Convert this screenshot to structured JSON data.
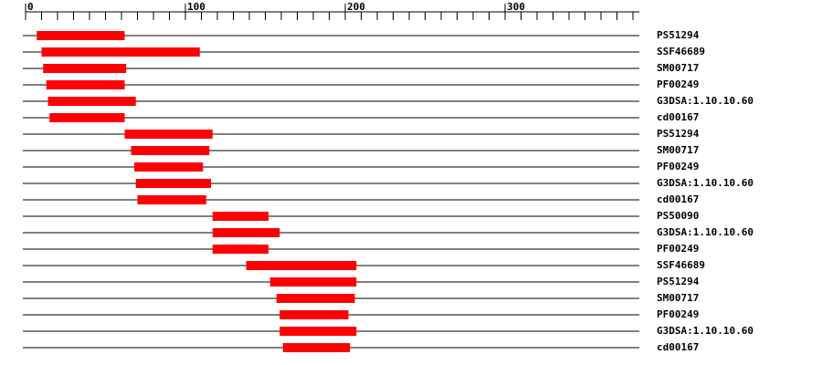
{
  "chart_data": {
    "type": "range",
    "categories": [
      "PS51294",
      "SSF46689",
      "SM00717",
      "PF00249",
      "G3DSA:1.10.10.60",
      "cd00167",
      "PS51294",
      "SM00717",
      "PF00249",
      "G3DSA:1.10.10.60",
      "cd00167",
      "PS50090",
      "G3DSA:1.10.10.60",
      "PF00249",
      "SSF46689",
      "PS51294",
      "SM00717",
      "PF00249",
      "G3DSA:1.10.10.60",
      "cd00167"
    ],
    "starts": [
      7,
      10,
      11,
      13,
      14,
      15,
      62,
      66,
      68,
      69,
      70,
      117,
      117,
      117,
      138,
      153,
      157,
      159,
      159,
      161
    ],
    "ends": [
      62,
      109,
      63,
      62,
      69,
      62,
      117,
      115,
      111,
      116,
      113,
      152,
      159,
      152,
      207,
      207,
      206,
      202,
      207,
      203
    ],
    "color": "#ff0000",
    "xlim": [
      0,
      384
    ],
    "xticks": [
      0,
      100,
      200,
      300
    ],
    "xticks_minor": [
      10,
      20,
      30,
      40,
      50,
      60,
      70,
      80,
      90,
      110,
      120,
      130,
      140,
      150,
      160,
      170,
      180,
      190,
      210,
      220,
      230,
      240,
      250,
      260,
      270,
      280,
      290,
      310,
      320,
      330,
      340,
      350,
      360,
      370,
      380
    ]
  }
}
